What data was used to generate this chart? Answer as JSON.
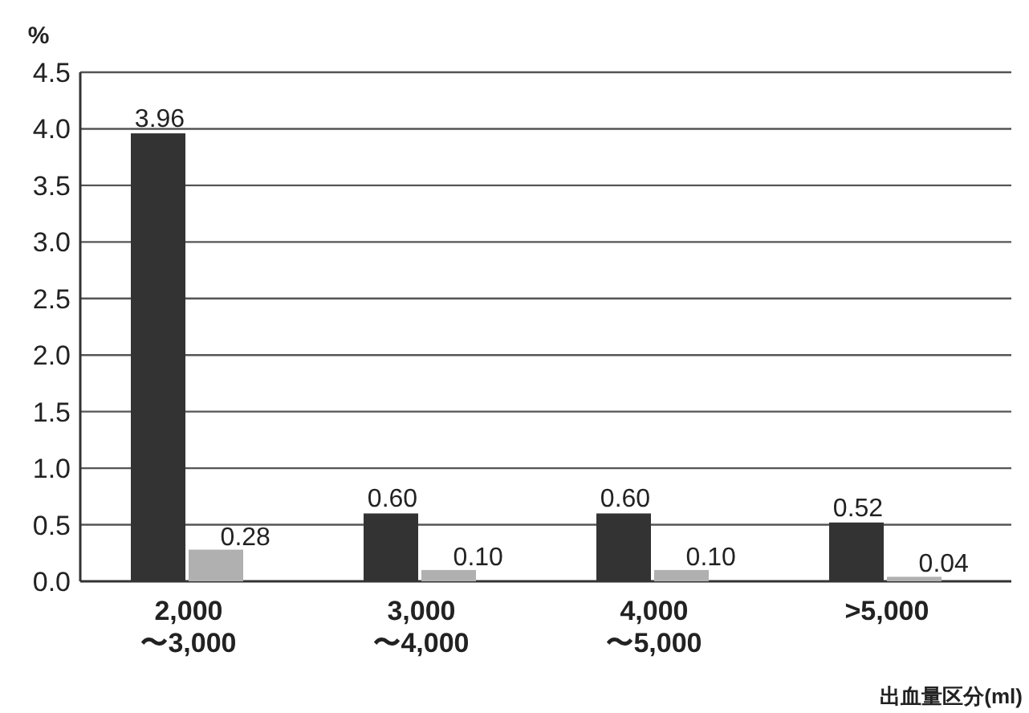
{
  "chart_data": {
    "type": "bar",
    "ylabel": "%",
    "xlabel": "出血量区分(ml)",
    "categories": [
      "2,000\n〜3,000",
      "3,000\n〜4,000",
      "4,000\n〜5,000",
      ">5,000"
    ],
    "series": [
      {
        "color": "#333333",
        "values": [
          3.96,
          0.6,
          0.6,
          0.52
        ],
        "value_labels": [
          "3.96",
          "0.60",
          "0.60",
          "0.52"
        ]
      },
      {
        "color": "#b0b0b0",
        "values": [
          0.28,
          0.1,
          0.1,
          0.04
        ],
        "value_labels": [
          "0.28",
          "0.10",
          "0.10",
          "0.04"
        ]
      }
    ],
    "ylim": [
      0,
      4.5
    ],
    "yticks": [
      {
        "value": 0,
        "label": "0.0"
      },
      0.5,
      {
        "value": 1,
        "label": "1.0"
      },
      1.5,
      {
        "value": 2,
        "label": "2.0"
      },
      2.5,
      {
        "value": 3,
        "label": "3.0"
      },
      3.5,
      {
        "value": 4,
        "label": "4.0"
      },
      4.5
    ],
    "grid": "y"
  }
}
